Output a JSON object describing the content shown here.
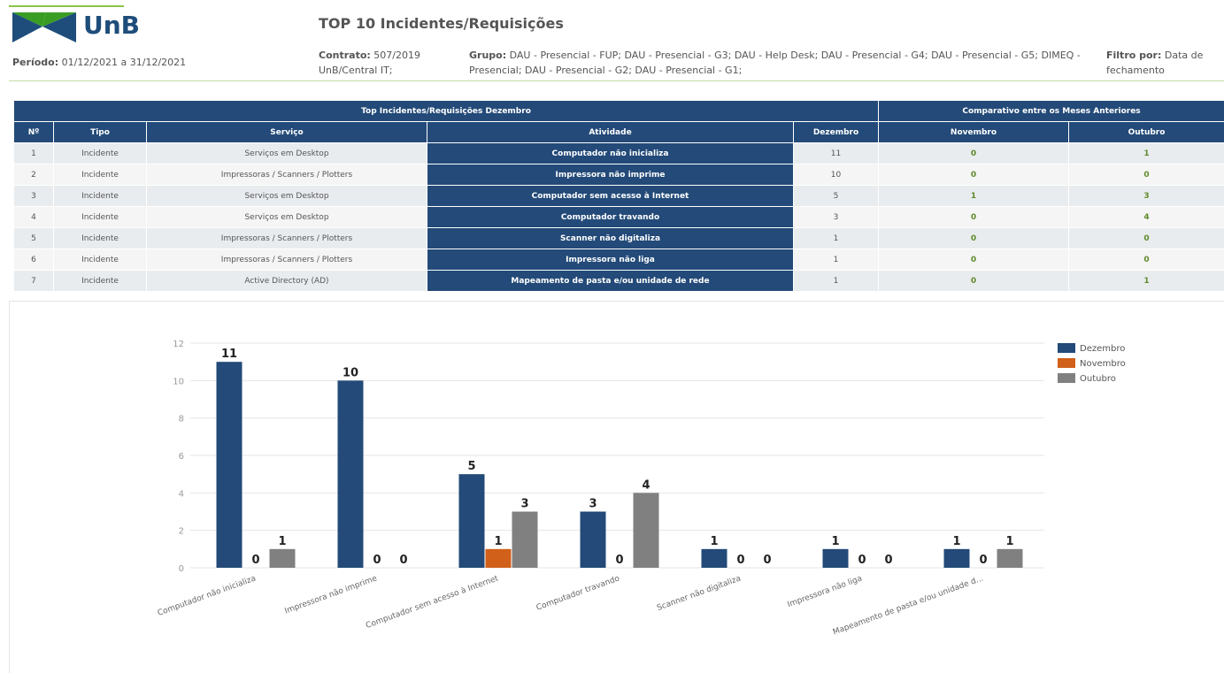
{
  "header": {
    "logo_text": "UnB",
    "title": "TOP 10 Incidentes/Requisições",
    "period": {
      "label": "Período:",
      "value": "01/12/2021 a 31/12/2021"
    },
    "contract": {
      "label": "Contrato:",
      "value": "507/2019 UnB/Central IT;"
    },
    "group": {
      "label": "Grupo:",
      "value": "DAU - Presencial - FUP; DAU - Presencial - G3; DAU - Help Desk; DAU - Presencial - G4; DAU - Presencial - G5; DIMEQ - Presencial; DAU - Presencial - G2; DAU - Presencial - G1;"
    },
    "filter": {
      "label": "Filtro por:",
      "value": "Data de fechamento"
    }
  },
  "table": {
    "group_headers": [
      "Top Incidentes/Requisições Dezembro",
      "Comparativo entre os Meses Anteriores"
    ],
    "columns": [
      "Nº",
      "Tipo",
      "Serviço",
      "Atividade",
      "Dezembro",
      "Novembro",
      "Outubro"
    ],
    "rows": [
      [
        1,
        "Incidente",
        "Serviços em Desktop",
        "Computador não inicializa",
        11,
        0,
        1
      ],
      [
        2,
        "Incidente",
        "Impressoras / Scanners / Plotters",
        "Impressora não imprime",
        10,
        0,
        0
      ],
      [
        3,
        "Incidente",
        "Serviços em Desktop",
        "Computador sem acesso à Internet",
        5,
        1,
        3
      ],
      [
        4,
        "Incidente",
        "Serviços em Desktop",
        "Computador travando",
        3,
        0,
        4
      ],
      [
        5,
        "Incidente",
        "Impressoras / Scanners / Plotters",
        "Scanner não digitaliza",
        1,
        0,
        0
      ],
      [
        6,
        "Incidente",
        "Impressoras / Scanners / Plotters",
        "Impressora não liga",
        1,
        0,
        0
      ],
      [
        7,
        "Incidente",
        "Active Directory (AD)",
        "Mapeamento de pasta e/ou unidade de rede",
        1,
        0,
        1
      ]
    ]
  },
  "chart_data": {
    "type": "bar",
    "categories": [
      "Computador não inicializa",
      "Impressora não imprime",
      "Computador sem acesso à Internet",
      "Computador travando",
      "Scanner não digitaliza",
      "Impressora não liga",
      "Mapeamento de pasta e/ou unidade d..."
    ],
    "series": [
      {
        "name": "Dezembro",
        "color": "#234a78",
        "values": [
          11,
          10,
          5,
          3,
          1,
          1,
          1
        ]
      },
      {
        "name": "Novembro",
        "color": "#d0601a",
        "values": [
          0,
          0,
          1,
          0,
          0,
          0,
          0
        ]
      },
      {
        "name": "Outubro",
        "color": "#808080",
        "values": [
          1,
          0,
          3,
          4,
          0,
          0,
          1
        ]
      }
    ],
    "ylim": [
      0,
      12
    ],
    "yticks": [
      0,
      2,
      4,
      6,
      8,
      10,
      12
    ],
    "grid": true,
    "legend": "top-right"
  }
}
